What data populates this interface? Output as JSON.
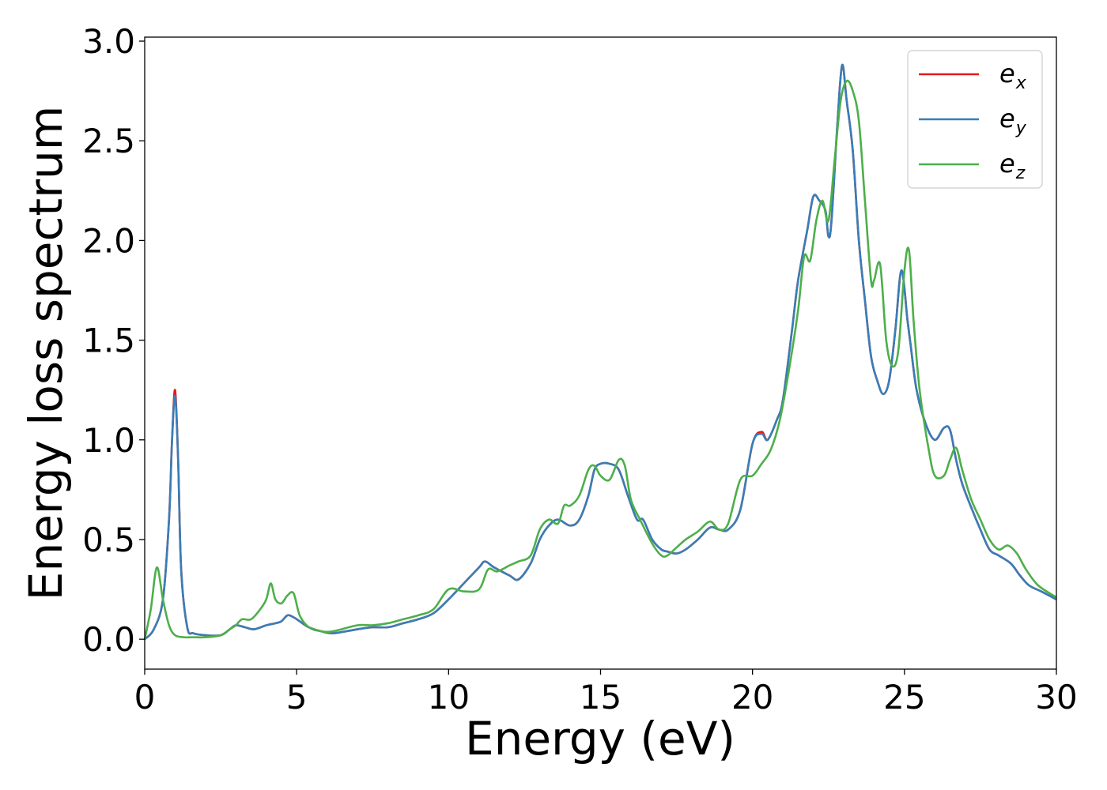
{
  "chart_data": {
    "type": "line",
    "xlabel": "Energy (eV)",
    "ylabel": "Energy loss spectrum",
    "xlim": [
      0,
      30
    ],
    "ylim": [
      -0.15,
      3.02
    ],
    "xticks": [
      "0",
      "5",
      "10",
      "15",
      "20",
      "25",
      "30"
    ],
    "yticks": [
      "0.0",
      "0.5",
      "1.0",
      "1.5",
      "2.0",
      "2.5",
      "3.0"
    ],
    "grid": false,
    "legend_position": "top-right",
    "series": [
      {
        "name": "e",
        "subscript": "x",
        "color": "#e41a1c",
        "x": [
          0,
          0.3,
          0.6,
          0.8,
          0.9,
          1.0,
          1.1,
          1.2,
          1.4,
          1.6,
          2.0,
          2.5,
          2.8,
          3.0,
          3.3,
          3.6,
          4.0,
          4.3,
          4.5,
          4.7,
          4.9,
          5.1,
          5.4,
          5.8,
          6.2,
          7.0,
          7.5,
          8.0,
          8.5,
          9.0,
          9.5,
          10.0,
          10.5,
          11.0,
          11.2,
          11.5,
          12.0,
          12.3,
          12.7,
          13.0,
          13.3,
          13.6,
          14.0,
          14.3,
          14.6,
          14.8,
          15.0,
          15.3,
          15.6,
          15.9,
          16.2,
          16.4,
          16.7,
          17.0,
          17.2,
          17.5,
          17.8,
          18.2,
          18.6,
          18.9,
          19.2,
          19.6,
          20.0,
          20.3,
          20.5,
          20.8,
          21.0,
          21.3,
          21.5,
          21.8,
          22.0,
          22.2,
          22.4,
          22.5,
          22.6,
          22.8,
          22.95,
          23.1,
          23.3,
          23.5,
          23.7,
          23.9,
          24.1,
          24.3,
          24.5,
          24.7,
          24.9,
          25.1,
          25.2,
          25.4,
          25.7,
          26.0,
          26.3,
          26.5,
          26.7,
          26.9,
          27.2,
          27.5,
          27.8,
          28.1,
          28.5,
          28.8,
          29.1,
          29.5,
          30.0
        ],
        "y": [
          0.0,
          0.05,
          0.2,
          0.6,
          1.0,
          1.25,
          0.9,
          0.35,
          0.06,
          0.03,
          0.02,
          0.02,
          0.05,
          0.07,
          0.06,
          0.05,
          0.07,
          0.08,
          0.09,
          0.12,
          0.11,
          0.09,
          0.06,
          0.04,
          0.03,
          0.05,
          0.06,
          0.06,
          0.08,
          0.1,
          0.13,
          0.2,
          0.28,
          0.36,
          0.39,
          0.36,
          0.32,
          0.3,
          0.38,
          0.5,
          0.57,
          0.6,
          0.57,
          0.6,
          0.72,
          0.85,
          0.88,
          0.88,
          0.85,
          0.72,
          0.6,
          0.6,
          0.5,
          0.45,
          0.44,
          0.43,
          0.45,
          0.5,
          0.56,
          0.55,
          0.55,
          0.65,
          0.98,
          1.04,
          1.0,
          1.1,
          1.2,
          1.55,
          1.8,
          2.05,
          2.22,
          2.2,
          2.15,
          2.02,
          2.1,
          2.6,
          2.88,
          2.7,
          2.45,
          2.0,
          1.7,
          1.42,
          1.3,
          1.23,
          1.3,
          1.55,
          1.85,
          1.6,
          1.48,
          1.25,
          1.08,
          1.0,
          1.06,
          1.05,
          0.9,
          0.78,
          0.66,
          0.55,
          0.45,
          0.42,
          0.38,
          0.32,
          0.27,
          0.24,
          0.2
        ]
      },
      {
        "name": "e",
        "subscript": "y",
        "color": "#377eb8",
        "x": [
          0,
          0.3,
          0.6,
          0.8,
          0.9,
          1.0,
          1.1,
          1.2,
          1.4,
          1.6,
          2.0,
          2.5,
          2.8,
          3.0,
          3.3,
          3.6,
          4.0,
          4.3,
          4.5,
          4.7,
          4.9,
          5.1,
          5.4,
          5.8,
          6.2,
          7.0,
          7.5,
          8.0,
          8.5,
          9.0,
          9.5,
          10.0,
          10.5,
          11.0,
          11.2,
          11.5,
          12.0,
          12.3,
          12.7,
          13.0,
          13.3,
          13.6,
          14.0,
          14.3,
          14.6,
          14.8,
          15.0,
          15.3,
          15.6,
          15.9,
          16.2,
          16.4,
          16.7,
          17.0,
          17.2,
          17.5,
          17.8,
          18.2,
          18.6,
          18.9,
          19.2,
          19.6,
          20.0,
          20.3,
          20.5,
          20.8,
          21.0,
          21.3,
          21.5,
          21.8,
          22.0,
          22.2,
          22.4,
          22.5,
          22.6,
          22.8,
          22.95,
          23.1,
          23.3,
          23.5,
          23.7,
          23.9,
          24.1,
          24.3,
          24.5,
          24.7,
          24.9,
          25.1,
          25.2,
          25.4,
          25.7,
          26.0,
          26.3,
          26.5,
          26.7,
          26.9,
          27.2,
          27.5,
          27.8,
          28.1,
          28.5,
          28.8,
          29.1,
          29.5,
          30.0
        ],
        "y": [
          0.0,
          0.05,
          0.2,
          0.6,
          1.0,
          1.22,
          0.9,
          0.35,
          0.06,
          0.03,
          0.02,
          0.02,
          0.05,
          0.07,
          0.06,
          0.05,
          0.07,
          0.08,
          0.09,
          0.12,
          0.11,
          0.09,
          0.06,
          0.04,
          0.03,
          0.05,
          0.06,
          0.06,
          0.08,
          0.1,
          0.13,
          0.2,
          0.28,
          0.36,
          0.39,
          0.36,
          0.32,
          0.3,
          0.38,
          0.5,
          0.57,
          0.6,
          0.57,
          0.6,
          0.72,
          0.85,
          0.88,
          0.88,
          0.85,
          0.72,
          0.6,
          0.6,
          0.5,
          0.45,
          0.44,
          0.43,
          0.45,
          0.5,
          0.56,
          0.55,
          0.55,
          0.65,
          0.98,
          1.03,
          1.0,
          1.1,
          1.2,
          1.55,
          1.8,
          2.05,
          2.22,
          2.2,
          2.15,
          2.02,
          2.1,
          2.6,
          2.88,
          2.7,
          2.45,
          2.0,
          1.7,
          1.42,
          1.3,
          1.23,
          1.3,
          1.55,
          1.85,
          1.6,
          1.48,
          1.25,
          1.08,
          1.0,
          1.06,
          1.05,
          0.9,
          0.78,
          0.66,
          0.55,
          0.45,
          0.42,
          0.38,
          0.32,
          0.27,
          0.24,
          0.2
        ]
      },
      {
        "name": "e",
        "subscript": "z",
        "color": "#4daf4a",
        "x": [
          0,
          0.2,
          0.4,
          0.6,
          0.8,
          1.0,
          1.3,
          1.6,
          2.0,
          2.5,
          2.8,
          3.0,
          3.2,
          3.5,
          3.8,
          4.0,
          4.15,
          4.3,
          4.5,
          4.7,
          4.9,
          5.1,
          5.4,
          5.8,
          6.2,
          7.0,
          7.5,
          8.0,
          8.5,
          9.0,
          9.5,
          10.0,
          10.5,
          11.0,
          11.3,
          11.6,
          12.0,
          12.3,
          12.7,
          13.0,
          13.3,
          13.6,
          13.8,
          14.0,
          14.3,
          14.6,
          14.8,
          15.0,
          15.3,
          15.6,
          15.8,
          16.0,
          16.3,
          16.7,
          17.0,
          17.2,
          17.5,
          17.8,
          18.2,
          18.6,
          18.9,
          19.2,
          19.6,
          20.0,
          20.3,
          20.6,
          20.9,
          21.2,
          21.5,
          21.7,
          21.9,
          22.1,
          22.3,
          22.5,
          22.7,
          22.9,
          23.1,
          23.3,
          23.5,
          23.7,
          23.9,
          24.0,
          24.2,
          24.4,
          24.6,
          24.8,
          25.0,
          25.15,
          25.3,
          25.5,
          25.8,
          26.0,
          26.3,
          26.5,
          26.7,
          26.9,
          27.2,
          27.5,
          27.8,
          28.1,
          28.4,
          28.7,
          29.0,
          29.4,
          30.0
        ],
        "y": [
          0.0,
          0.15,
          0.36,
          0.2,
          0.07,
          0.02,
          0.01,
          0.01,
          0.01,
          0.02,
          0.05,
          0.07,
          0.1,
          0.1,
          0.15,
          0.2,
          0.28,
          0.2,
          0.18,
          0.22,
          0.23,
          0.12,
          0.06,
          0.04,
          0.04,
          0.07,
          0.07,
          0.08,
          0.1,
          0.12,
          0.15,
          0.25,
          0.24,
          0.25,
          0.35,
          0.34,
          0.37,
          0.39,
          0.42,
          0.55,
          0.6,
          0.58,
          0.67,
          0.67,
          0.72,
          0.85,
          0.87,
          0.82,
          0.8,
          0.9,
          0.87,
          0.7,
          0.6,
          0.48,
          0.42,
          0.42,
          0.46,
          0.5,
          0.54,
          0.59,
          0.55,
          0.58,
          0.8,
          0.82,
          0.88,
          0.95,
          1.1,
          1.35,
          1.65,
          1.92,
          1.9,
          2.1,
          2.2,
          2.1,
          2.4,
          2.7,
          2.8,
          2.75,
          2.6,
          2.2,
          1.8,
          1.8,
          1.88,
          1.5,
          1.37,
          1.45,
          1.85,
          1.95,
          1.6,
          1.25,
          0.95,
          0.82,
          0.82,
          0.9,
          0.96,
          0.85,
          0.7,
          0.6,
          0.5,
          0.45,
          0.47,
          0.43,
          0.35,
          0.27,
          0.21
        ]
      }
    ]
  }
}
